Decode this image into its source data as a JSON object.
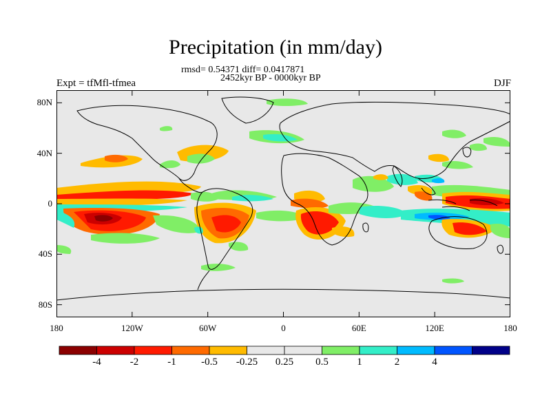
{
  "header": {
    "title": "Precipitation (in mm/day)",
    "stats": "rmsd= 0.54371 diff= 0.0417871",
    "period": "2452kyr BP - 0000kyr BP",
    "experiment": "Expt = tfMfl-tfmea",
    "season": "DJF"
  },
  "axes": {
    "lat_ticks": [
      {
        "value": 80,
        "label": "80N"
      },
      {
        "value": 40,
        "label": "40N"
      },
      {
        "value": 0,
        "label": "0"
      },
      {
        "value": -40,
        "label": "40S"
      },
      {
        "value": -80,
        "label": "80S"
      }
    ],
    "lon_ticks": [
      {
        "value": -180,
        "label": "180"
      },
      {
        "value": -120,
        "label": "120W"
      },
      {
        "value": -60,
        "label": "60W"
      },
      {
        "value": 0,
        "label": "0"
      },
      {
        "value": 60,
        "label": "60E"
      },
      {
        "value": 120,
        "label": "120E"
      },
      {
        "value": 180,
        "label": "180"
      }
    ],
    "lon_range": [
      -180,
      180
    ],
    "lat_range": [
      -90,
      90
    ]
  },
  "colorbar": {
    "colors": [
      "#8B0000",
      "#CC0000",
      "#FF1A00",
      "#FF6A00",
      "#FFBB00",
      "#E8E8E8",
      "#E8E8E8",
      "#80EE66",
      "#33EEC8",
      "#00BBFF",
      "#0055FF",
      "#000088"
    ],
    "labels": [
      "-4",
      "-2",
      "-1",
      "-0.5",
      "-0.25",
      "0.25",
      "0.5",
      "1",
      "2",
      "4"
    ]
  },
  "map_background": "#E8E8E8"
}
